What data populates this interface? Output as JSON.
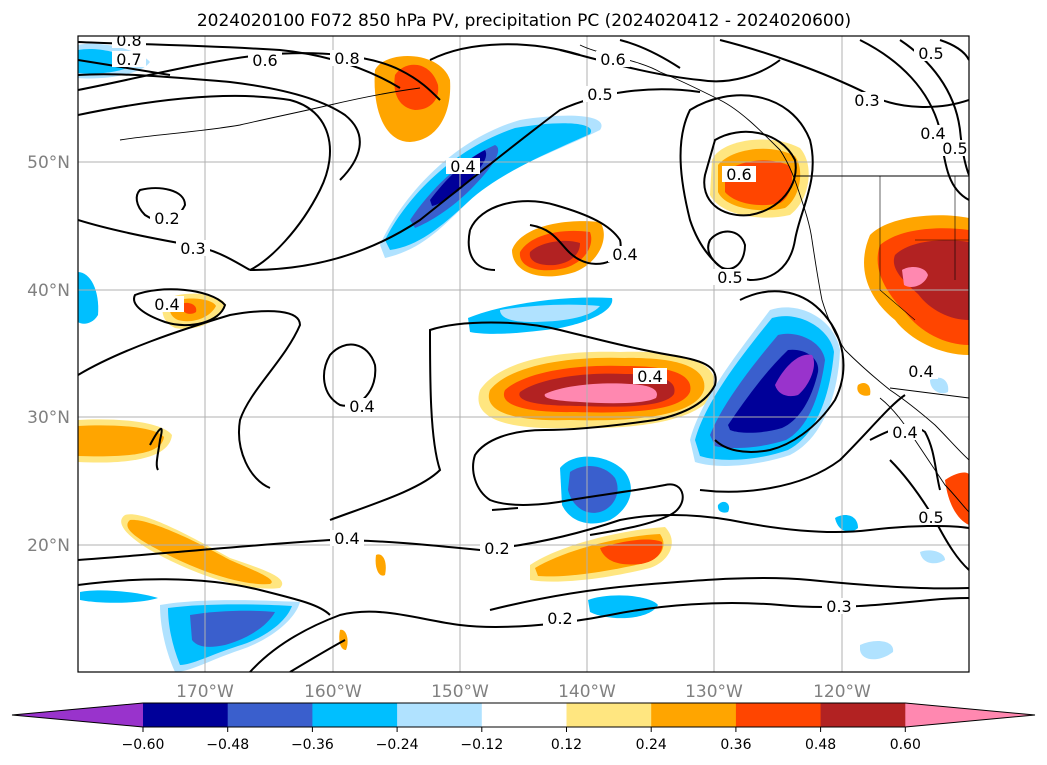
{
  "title": "2024020100 F072 850 hPa PV, precipitation PC (2024020412 - 2024020600)",
  "map": {
    "lat_labels": [
      "50°N",
      "40°N",
      "30°N",
      "20°N"
    ],
    "lon_labels": [
      "170°W",
      "160°W",
      "150°W",
      "140°W",
      "130°W",
      "120°W"
    ],
    "grid": true,
    "contour_labels": [
      "0.8",
      "0.7",
      "0.6",
      "0.8",
      "0.6",
      "0.5",
      "0.3",
      "0.5",
      "0.4",
      "0.5",
      "0.4",
      "0.6",
      "0.2",
      "0.3",
      "0.4",
      "0.4",
      "0.5",
      "0.4",
      "0.4",
      "0.4",
      "0.4",
      "0.4",
      "0.5",
      "0.2",
      "0.2",
      "0.3"
    ]
  },
  "colorbar": {
    "ticks": [
      "−0.60",
      "−0.48",
      "−0.36",
      "−0.24",
      "−0.12",
      "0.12",
      "0.24",
      "0.36",
      "0.48",
      "0.60"
    ],
    "colors": [
      "#9933cc",
      "#000099",
      "#3a5fcd",
      "#00bfff",
      "#b0e2ff",
      "#ffffff",
      "#ffe680",
      "#ffa500",
      "#ff4500",
      "#b22222",
      "#ff88b0"
    ]
  }
}
